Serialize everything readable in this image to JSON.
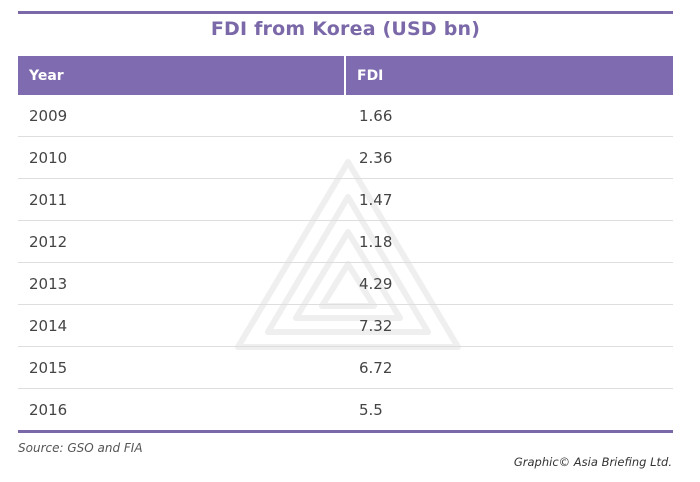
{
  "colors": {
    "accent": "#7a68a8",
    "header_bg": "#7e6bb0"
  },
  "watermark": {
    "icon": "asia-briefing-logo-icon"
  },
  "chart_data": {
    "type": "table",
    "title": "FDI from Korea (USD bn)",
    "columns": [
      "Year",
      "FDI"
    ],
    "rows": [
      [
        "2009",
        "1.66"
      ],
      [
        "2010",
        "2.36"
      ],
      [
        "2011",
        "1.47"
      ],
      [
        "2012",
        "1.18"
      ],
      [
        "2013",
        "4.29"
      ],
      [
        "2014",
        "7.32"
      ],
      [
        "2015",
        "6.72"
      ],
      [
        "2016",
        "5.5"
      ]
    ],
    "x": [
      2009,
      2010,
      2011,
      2012,
      2013,
      2014,
      2015,
      2016
    ],
    "values": [
      1.66,
      2.36,
      1.47,
      1.18,
      4.29,
      7.32,
      6.72,
      5.5
    ]
  },
  "footer": {
    "source": "Source: GSO and FIA",
    "credit": "Graphic© Asia Briefing Ltd."
  }
}
